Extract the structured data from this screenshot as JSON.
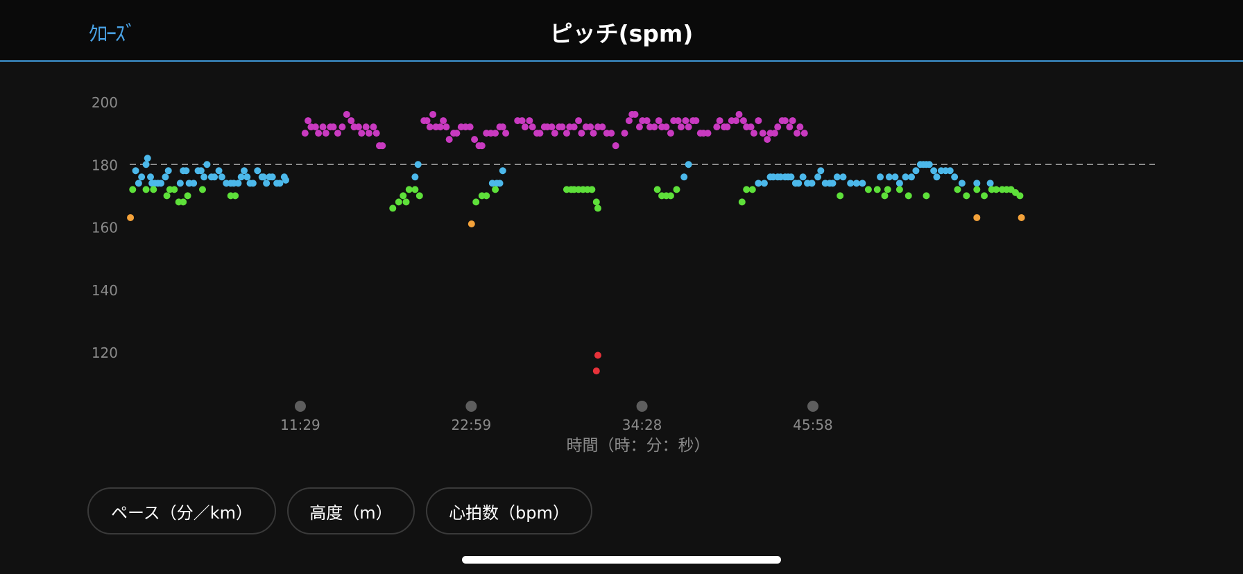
{
  "header": {
    "close_label": "ｸﾛｰｽﾞ",
    "title": "ピッチ(spm)"
  },
  "tabs": [
    {
      "label": "ペース（分／km）"
    },
    {
      "label": "高度（m）"
    },
    {
      "label": "心拍数（bpm）"
    }
  ],
  "chart_data": {
    "type": "scatter",
    "title": "",
    "xlabel": "時間（時：分：秒）",
    "ylabel": "",
    "x_unit": "minutes",
    "xlim": [
      0,
      68.98
    ],
    "ylim": [
      100,
      200
    ],
    "yticks": [
      120,
      140,
      160,
      180,
      200
    ],
    "xticks": [
      {
        "value": 11.48,
        "label": "11:29"
      },
      {
        "value": 22.98,
        "label": "22:59"
      },
      {
        "value": 34.47,
        "label": "34:28"
      },
      {
        "value": 45.97,
        "label": "45:58"
      }
    ],
    "reference_line": 180,
    "grid": false,
    "colors": {
      "blue": "#4cb8ea",
      "green": "#5ee03a",
      "magenta": "#c93ac0",
      "orange": "#f4a23a",
      "red": "#e8323a",
      "reference": "#9a9a9a",
      "tick_label": "#8a8a8a",
      "x_marker": "#5e5e5e"
    },
    "series": [
      {
        "color": "blue",
        "points": [
          [
            0.4,
            178
          ],
          [
            0.6,
            174
          ],
          [
            0.8,
            176
          ],
          [
            1.1,
            180
          ],
          [
            1.2,
            182
          ],
          [
            1.4,
            176
          ],
          [
            1.5,
            174
          ],
          [
            1.7,
            174
          ],
          [
            1.9,
            174
          ],
          [
            2.1,
            174
          ],
          [
            2.4,
            176
          ],
          [
            2.6,
            178
          ],
          [
            3.4,
            174
          ],
          [
            3.6,
            178
          ],
          [
            3.8,
            178
          ],
          [
            4.0,
            174
          ],
          [
            4.3,
            174
          ],
          [
            4.6,
            178
          ],
          [
            4.8,
            178
          ],
          [
            5.0,
            176
          ],
          [
            5.2,
            180
          ],
          [
            5.5,
            176
          ],
          [
            5.7,
            176
          ],
          [
            6.0,
            178
          ],
          [
            6.2,
            176
          ],
          [
            6.5,
            174
          ],
          [
            6.8,
            174
          ],
          [
            7.0,
            174
          ],
          [
            7.3,
            174
          ],
          [
            7.5,
            176
          ],
          [
            7.7,
            178
          ],
          [
            7.9,
            176
          ],
          [
            8.1,
            174
          ],
          [
            8.3,
            174
          ],
          [
            8.6,
            178
          ],
          [
            8.9,
            176
          ],
          [
            9.0,
            176
          ],
          [
            9.2,
            174
          ],
          [
            9.4,
            176
          ],
          [
            9.6,
            176
          ],
          [
            9.9,
            174
          ],
          [
            10.1,
            174
          ],
          [
            10.4,
            176
          ],
          [
            10.5,
            175
          ],
          [
            19.2,
            176
          ],
          [
            19.4,
            180
          ],
          [
            24.4,
            174
          ],
          [
            24.7,
            174
          ],
          [
            24.9,
            174
          ],
          [
            25.1,
            178
          ],
          [
            37.3,
            176
          ],
          [
            37.6,
            180
          ],
          [
            42.3,
            174
          ],
          [
            42.7,
            174
          ],
          [
            43.1,
            176
          ],
          [
            43.3,
            176
          ],
          [
            43.6,
            176
          ],
          [
            43.8,
            176
          ],
          [
            44.1,
            176
          ],
          [
            44.3,
            176
          ],
          [
            44.5,
            176
          ],
          [
            44.8,
            174
          ],
          [
            45.0,
            174
          ],
          [
            45.3,
            176
          ],
          [
            45.6,
            174
          ],
          [
            45.9,
            174
          ],
          [
            46.3,
            176
          ],
          [
            46.5,
            178
          ],
          [
            46.8,
            174
          ],
          [
            47.1,
            174
          ],
          [
            47.3,
            174
          ],
          [
            47.6,
            176
          ],
          [
            48.0,
            176
          ],
          [
            48.5,
            174
          ],
          [
            48.9,
            174
          ],
          [
            49.3,
            174
          ],
          [
            50.5,
            176
          ],
          [
            51.1,
            176
          ],
          [
            51.5,
            176
          ],
          [
            51.8,
            174
          ],
          [
            52.2,
            176
          ],
          [
            52.6,
            176
          ],
          [
            52.9,
            178
          ],
          [
            53.2,
            180
          ],
          [
            53.4,
            180
          ],
          [
            53.6,
            180
          ],
          [
            53.8,
            180
          ],
          [
            54.1,
            178
          ],
          [
            54.3,
            176
          ],
          [
            54.6,
            178
          ],
          [
            54.9,
            178
          ],
          [
            55.2,
            178
          ],
          [
            55.5,
            176
          ],
          [
            56.0,
            174
          ],
          [
            57.0,
            174
          ],
          [
            57.9,
            174
          ]
        ]
      },
      {
        "color": "green",
        "points": [
          [
            0.2,
            172
          ],
          [
            1.1,
            172
          ],
          [
            1.6,
            172
          ],
          [
            2.5,
            170
          ],
          [
            2.7,
            172
          ],
          [
            3.0,
            172
          ],
          [
            3.3,
            168
          ],
          [
            3.6,
            168
          ],
          [
            3.9,
            170
          ],
          [
            4.9,
            172
          ],
          [
            6.8,
            170
          ],
          [
            7.1,
            170
          ],
          [
            17.7,
            166
          ],
          [
            18.1,
            168
          ],
          [
            18.4,
            170
          ],
          [
            18.6,
            168
          ],
          [
            18.8,
            172
          ],
          [
            19.2,
            172
          ],
          [
            19.5,
            170
          ],
          [
            23.3,
            168
          ],
          [
            23.7,
            170
          ],
          [
            24.0,
            170
          ],
          [
            24.6,
            172
          ],
          [
            29.4,
            172
          ],
          [
            29.7,
            172
          ],
          [
            29.9,
            172
          ],
          [
            30.2,
            172
          ],
          [
            30.5,
            172
          ],
          [
            30.8,
            172
          ],
          [
            31.1,
            172
          ],
          [
            31.4,
            168
          ],
          [
            31.5,
            166
          ],
          [
            35.5,
            172
          ],
          [
            35.8,
            170
          ],
          [
            36.1,
            170
          ],
          [
            36.4,
            170
          ],
          [
            36.8,
            172
          ],
          [
            41.2,
            168
          ],
          [
            41.5,
            172
          ],
          [
            41.9,
            172
          ],
          [
            47.8,
            170
          ],
          [
            49.7,
            172
          ],
          [
            50.3,
            172
          ],
          [
            50.8,
            170
          ],
          [
            51.0,
            172
          ],
          [
            51.8,
            172
          ],
          [
            52.4,
            170
          ],
          [
            53.6,
            170
          ],
          [
            55.7,
            172
          ],
          [
            56.3,
            170
          ],
          [
            57.0,
            172
          ],
          [
            57.5,
            170
          ],
          [
            58.0,
            172
          ],
          [
            58.3,
            172
          ],
          [
            58.7,
            172
          ],
          [
            59.0,
            172
          ],
          [
            59.3,
            172
          ],
          [
            59.6,
            171
          ],
          [
            59.9,
            170
          ]
        ]
      },
      {
        "color": "magenta",
        "points": [
          [
            11.8,
            190
          ],
          [
            12.0,
            194
          ],
          [
            12.2,
            192
          ],
          [
            12.5,
            192
          ],
          [
            12.7,
            190
          ],
          [
            13.0,
            192
          ],
          [
            13.2,
            190
          ],
          [
            13.5,
            192
          ],
          [
            13.7,
            192
          ],
          [
            14.0,
            190
          ],
          [
            14.3,
            192
          ],
          [
            14.6,
            196
          ],
          [
            14.9,
            194
          ],
          [
            15.1,
            192
          ],
          [
            15.4,
            192
          ],
          [
            15.6,
            190
          ],
          [
            15.9,
            192
          ],
          [
            16.1,
            190
          ],
          [
            16.4,
            192
          ],
          [
            16.6,
            190
          ],
          [
            16.8,
            186
          ],
          [
            17.0,
            186
          ],
          [
            19.8,
            194
          ],
          [
            20.0,
            194
          ],
          [
            20.2,
            192
          ],
          [
            20.4,
            196
          ],
          [
            20.6,
            192
          ],
          [
            20.9,
            192
          ],
          [
            21.1,
            194
          ],
          [
            21.3,
            192
          ],
          [
            21.5,
            188
          ],
          [
            21.8,
            190
          ],
          [
            22.0,
            190
          ],
          [
            22.3,
            192
          ],
          [
            22.6,
            192
          ],
          [
            22.9,
            192
          ],
          [
            23.2,
            188
          ],
          [
            23.5,
            186
          ],
          [
            23.7,
            186
          ],
          [
            24.0,
            190
          ],
          [
            24.3,
            190
          ],
          [
            24.6,
            190
          ],
          [
            24.9,
            192
          ],
          [
            25.1,
            192
          ],
          [
            25.3,
            190
          ],
          [
            26.1,
            194
          ],
          [
            26.4,
            194
          ],
          [
            26.6,
            192
          ],
          [
            26.9,
            194
          ],
          [
            27.1,
            192
          ],
          [
            27.4,
            190
          ],
          [
            27.6,
            190
          ],
          [
            27.9,
            192
          ],
          [
            28.1,
            192
          ],
          [
            28.4,
            192
          ],
          [
            28.6,
            190
          ],
          [
            28.9,
            192
          ],
          [
            29.1,
            192
          ],
          [
            29.4,
            190
          ],
          [
            29.6,
            192
          ],
          [
            29.9,
            192
          ],
          [
            30.2,
            194
          ],
          [
            30.4,
            190
          ],
          [
            30.7,
            192
          ],
          [
            31.0,
            192
          ],
          [
            31.2,
            190
          ],
          [
            31.5,
            192
          ],
          [
            31.8,
            192
          ],
          [
            32.1,
            190
          ],
          [
            32.4,
            190
          ],
          [
            32.7,
            186
          ],
          [
            33.3,
            190
          ],
          [
            33.6,
            194
          ],
          [
            33.8,
            196
          ],
          [
            34.0,
            196
          ],
          [
            34.3,
            192
          ],
          [
            34.5,
            194
          ],
          [
            34.8,
            194
          ],
          [
            35.0,
            192
          ],
          [
            35.3,
            192
          ],
          [
            35.6,
            194
          ],
          [
            35.8,
            192
          ],
          [
            36.1,
            192
          ],
          [
            36.4,
            190
          ],
          [
            36.6,
            194
          ],
          [
            36.9,
            194
          ],
          [
            37.1,
            192
          ],
          [
            37.4,
            194
          ],
          [
            37.6,
            192
          ],
          [
            37.9,
            194
          ],
          [
            38.1,
            194
          ],
          [
            38.4,
            190
          ],
          [
            38.6,
            190
          ],
          [
            38.9,
            190
          ],
          [
            39.5,
            192
          ],
          [
            39.7,
            194
          ],
          [
            40.0,
            192
          ],
          [
            40.2,
            192
          ],
          [
            40.5,
            194
          ],
          [
            40.8,
            194
          ],
          [
            41.0,
            196
          ],
          [
            41.3,
            194
          ],
          [
            41.5,
            192
          ],
          [
            41.8,
            192
          ],
          [
            42.0,
            190
          ],
          [
            42.3,
            194
          ],
          [
            42.6,
            190
          ],
          [
            42.9,
            188
          ],
          [
            43.1,
            190
          ],
          [
            43.4,
            190
          ],
          [
            43.6,
            192
          ],
          [
            43.9,
            194
          ],
          [
            44.1,
            194
          ],
          [
            44.4,
            192
          ],
          [
            44.6,
            194
          ],
          [
            44.9,
            190
          ],
          [
            45.1,
            192
          ],
          [
            45.4,
            190
          ]
        ]
      },
      {
        "color": "orange",
        "points": [
          [
            0.05,
            163
          ],
          [
            23.0,
            161
          ],
          [
            57.0,
            163
          ],
          [
            60.0,
            163
          ]
        ]
      },
      {
        "color": "red",
        "points": [
          [
            31.5,
            119
          ],
          [
            31.4,
            114
          ]
        ]
      }
    ]
  }
}
